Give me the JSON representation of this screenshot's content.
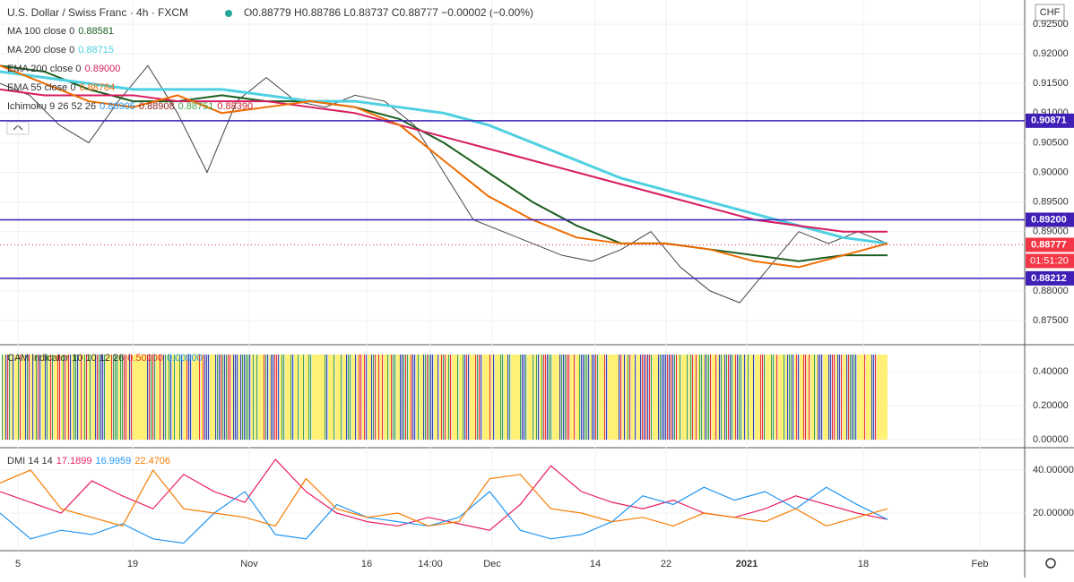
{
  "header": {
    "title": "U.S. Dollar / Swiss Franc · 4h · FXCM",
    "ohlc": "O0.88779 H0.88786 L0.88737 C0.88777 −0.00002 (−0.00%)"
  },
  "currency": "CHF",
  "countdown": "01:51:20",
  "time_axis": [
    "5",
    "19",
    "Nov",
    "16",
    "14:00",
    "Dec",
    "14",
    "22",
    "2021",
    "18",
    "Feb"
  ],
  "price_pane": {
    "ylim": [
      0.87092,
      0.92908
    ],
    "yticks": [
      {
        "value": 0.925,
        "label": "0.92500"
      },
      {
        "value": 0.92,
        "label": "0.92000"
      },
      {
        "value": 0.915,
        "label": "0.91500"
      },
      {
        "value": 0.91,
        "label": "0.91000"
      },
      {
        "value": 0.905,
        "label": "0.90500"
      },
      {
        "value": 0.9,
        "label": "0.90000"
      },
      {
        "value": 0.895,
        "label": "0.89500"
      },
      {
        "value": 0.89,
        "label": "0.89000"
      },
      {
        "value": 0.88,
        "label": "0.88000"
      },
      {
        "value": 0.875,
        "label": "0.87500"
      }
    ],
    "levels": [
      0.90871,
      {
        "value": 0.892,
        "label": "0.89200"
      },
      0.88212
    ],
    "last_price": 0.88777,
    "series": [
      {
        "name": "MA 100 close 0",
        "legend_value": "0.88581",
        "color": "#1b5e20",
        "values": [
          0.918,
          0.917,
          0.914,
          0.912,
          0.912,
          0.913,
          0.912,
          0.912,
          0.911,
          0.909,
          0.905,
          0.9,
          0.895,
          0.891,
          0.888,
          0.888,
          0.887,
          0.886,
          0.885,
          0.886,
          0.886
        ]
      },
      {
        "name": "MA 200 close 0",
        "legend_value": "0.88715",
        "color": "#4dd0e1",
        "values": [
          0.917,
          0.916,
          0.915,
          0.914,
          0.914,
          0.914,
          0.913,
          0.912,
          0.912,
          0.911,
          0.91,
          0.908,
          0.905,
          0.902,
          0.899,
          0.897,
          0.895,
          0.893,
          0.891,
          0.889,
          0.888
        ]
      },
      {
        "name": "EMA 200 close 0",
        "legend_value": "0.89000",
        "color": "#d81b60",
        "values": [
          0.914,
          0.913,
          0.913,
          0.913,
          0.912,
          0.912,
          0.912,
          0.911,
          0.91,
          0.908,
          0.906,
          0.904,
          0.902,
          0.9,
          0.898,
          0.896,
          0.894,
          0.892,
          0.891,
          0.89,
          0.89
        ]
      },
      {
        "name": "EMA 55 close 0",
        "legend_value": "0.88784",
        "color": "#ef6c00",
        "values": [
          0.918,
          0.915,
          0.912,
          0.911,
          0.913,
          0.91,
          0.911,
          0.912,
          0.911,
          0.908,
          0.902,
          0.896,
          0.892,
          0.889,
          0.888,
          0.888,
          0.887,
          0.885,
          0.884,
          0.886,
          0.888
        ]
      }
    ],
    "price": {
      "color": "#444444",
      "values": [
        0.915,
        0.913,
        0.908,
        0.905,
        0.912,
        0.918,
        0.91,
        0.9,
        0.912,
        0.916,
        0.912,
        0.911,
        0.913,
        0.912,
        0.908,
        0.9,
        0.892,
        0.89,
        0.888,
        0.886,
        0.885,
        0.887,
        0.89,
        0.884,
        0.88,
        0.878,
        0.884,
        0.89,
        0.888,
        0.89,
        0.888
      ]
    },
    "ichimoku": {
      "name": "Ichimoku 9 26 52 26",
      "legend_values": [
        "0.88905",
        "0.88908",
        "0.88751",
        "0.88390"
      ]
    }
  },
  "cam_pane": {
    "name": "CAM indicator 10 10 12 26",
    "legend_values": [
      "0.50000",
      "0.00000"
    ],
    "ylim": [
      -0.047,
      0.547
    ],
    "yticks": [
      {
        "value": 0.4,
        "label": "0.40000"
      },
      {
        "value": 0.2,
        "label": "0.20000"
      },
      {
        "value": 0,
        "label": "0.00000"
      }
    ],
    "bar_value": 0.5
  },
  "dmi_pane": {
    "name": "DMI 14 14",
    "ylim": [
      2.5,
      49.6
    ],
    "yticks": [
      {
        "value": 40,
        "label": "40.00000"
      },
      {
        "value": 20,
        "label": "20.00000"
      }
    ],
    "series": [
      {
        "legend_value": "17.1899",
        "color": "#e91e63",
        "values": [
          30,
          25,
          20,
          35,
          28,
          22,
          38,
          30,
          25,
          45,
          30,
          20,
          16,
          14,
          18,
          15,
          12,
          24,
          42,
          30,
          25,
          22,
          26,
          20,
          18,
          22,
          28,
          24,
          20,
          17
        ]
      },
      {
        "legend_value": "16.9959",
        "color": "#2196f3",
        "values": [
          20,
          8,
          12,
          10,
          15,
          8,
          6,
          20,
          30,
          10,
          8,
          24,
          18,
          16,
          14,
          18,
          30,
          12,
          8,
          10,
          16,
          28,
          24,
          32,
          26,
          30,
          22,
          32,
          24,
          17
        ]
      },
      {
        "legend_value": "22.4706",
        "color": "#f57c00",
        "values": [
          34,
          40,
          22,
          18,
          14,
          40,
          22,
          20,
          18,
          14,
          36,
          22,
          18,
          20,
          14,
          16,
          36,
          38,
          22,
          20,
          16,
          18,
          14,
          20,
          18,
          16,
          22,
          14,
          18,
          22
        ]
      }
    ]
  }
}
